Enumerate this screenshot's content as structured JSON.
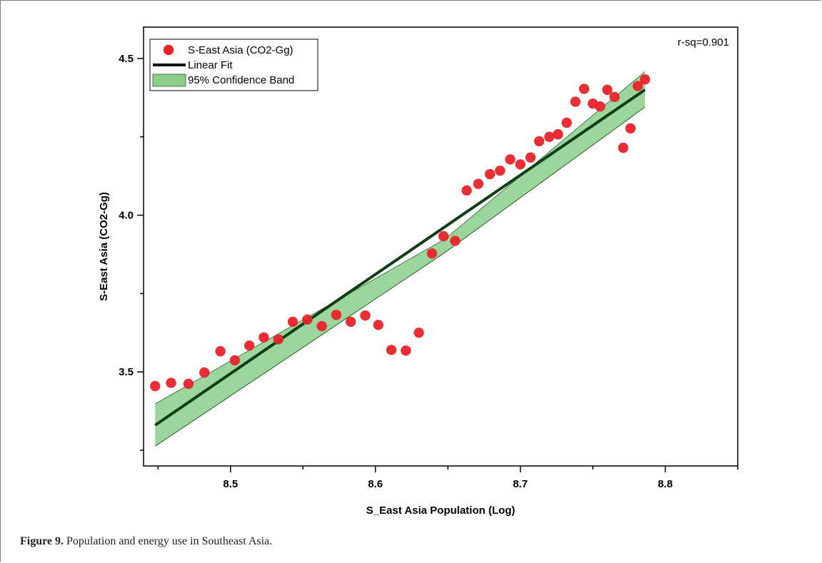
{
  "caption": {
    "label": "Figure 9.",
    "text": "Population and energy use in Southeast Asia."
  },
  "chart_data": {
    "type": "scatter",
    "xlabel": "S_East Asia Population (Log)",
    "ylabel": "S-East Asia (CO2-Gg)",
    "xlim": [
      8.44,
      8.85
    ],
    "ylim": [
      3.2,
      4.6
    ],
    "xticks": [
      8.5,
      8.6,
      8.7,
      8.8
    ],
    "xtick_labels": [
      "8.5",
      "8.6",
      "8.7",
      "8.8"
    ],
    "yticks": [
      3.5,
      4.0,
      4.5
    ],
    "ytick_labels": [
      "3.5",
      "4.0",
      "4.5"
    ],
    "legend_position": "top-left",
    "grid": false,
    "annotation": "r-sq=0.901",
    "series": [
      {
        "name": "S-East Asia (CO2-Gg)",
        "kind": "points",
        "color": "#e8242a",
        "x": [
          8.448,
          8.459,
          8.471,
          8.482,
          8.493,
          8.503,
          8.513,
          8.523,
          8.533,
          8.543,
          8.553,
          8.563,
          8.573,
          8.583,
          8.593,
          8.602,
          8.611,
          8.621,
          8.63,
          8.639,
          8.647,
          8.655,
          8.663,
          8.671,
          8.679,
          8.686,
          8.693,
          8.7,
          8.707,
          8.713,
          8.72,
          8.726,
          8.732,
          8.738,
          8.744,
          8.75,
          8.755,
          8.76,
          8.765,
          8.771,
          8.776,
          8.781,
          8.786
        ],
        "y": [
          3.455,
          3.465,
          3.462,
          3.498,
          3.566,
          3.537,
          3.584,
          3.61,
          3.604,
          3.66,
          3.667,
          3.646,
          3.682,
          3.66,
          3.68,
          3.65,
          3.57,
          3.568,
          3.625,
          3.878,
          3.933,
          3.918,
          4.079,
          4.1,
          4.131,
          4.142,
          4.178,
          4.162,
          4.184,
          4.236,
          4.25,
          4.258,
          4.295,
          4.362,
          4.403,
          4.356,
          4.347,
          4.4,
          4.377,
          4.215,
          4.277,
          4.412,
          4.433
        ]
      },
      {
        "name": "Linear Fit",
        "kind": "line",
        "color": "#0d3d14",
        "x": [
          8.448,
          8.786
        ],
        "y": [
          3.33,
          4.4
        ]
      },
      {
        "name": "95% Confidence Band",
        "kind": "band",
        "color": "#8ccf8c",
        "x": [
          8.448,
          8.648,
          8.786
        ],
        "y_lower": [
          3.263,
          3.881,
          4.345
        ],
        "y_upper": [
          3.398,
          3.924,
          4.458
        ]
      }
    ]
  }
}
